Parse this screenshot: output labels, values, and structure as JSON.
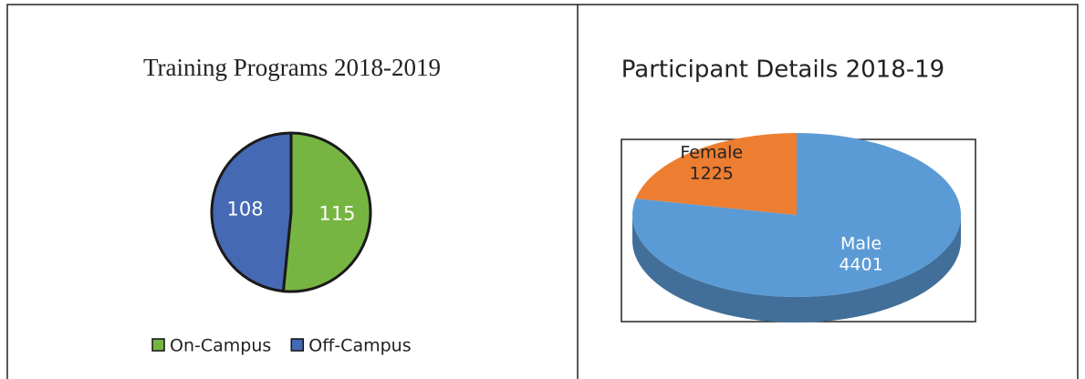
{
  "chart_data": [
    {
      "type": "pie",
      "title": "Training Programs 2018-2019",
      "categories": [
        "On-Campus",
        "Off-Campus"
      ],
      "values": [
        115,
        108
      ],
      "colors": [
        "#77b543",
        "#4669b3"
      ],
      "legend": "bottom"
    },
    {
      "type": "pie3d",
      "title": "Participant Details 2018-19",
      "categories": [
        "Male",
        "Female"
      ],
      "values": [
        4401,
        1225
      ],
      "colors": [
        "#5b9bd5",
        "#ed7d31"
      ]
    }
  ]
}
